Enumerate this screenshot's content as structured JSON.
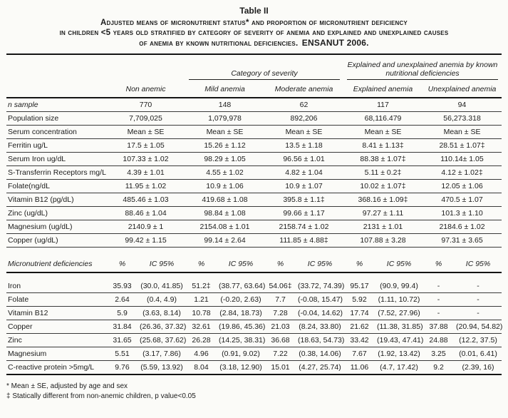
{
  "title": {
    "table_label": "Table II",
    "line1": "Adjusted means of micronutrient status* and proportion of micronutrient deficiency",
    "line2": "in children <5 years old stratified by category of severity of anemia and explained and unexplained causes",
    "line3": "of anemia by known nutritional deficiencies.",
    "line3_bold": "ENSANUT 2006."
  },
  "header": {
    "severity_group": "Category of severity",
    "explained_group": "Explained and unexplained anemia by known nutritional deficiencies",
    "columns": [
      "Non anemic",
      "Mild anemia",
      "Moderate anemia",
      "Explained anemia",
      "Unexplained anemia"
    ]
  },
  "means_section": {
    "rows": [
      {
        "label": "n sample",
        "values": [
          "770",
          "148",
          "62",
          "117",
          "94"
        ]
      },
      {
        "label": "Population size",
        "values": [
          "7,709,025",
          "1,079,978",
          "892,206",
          "68,116.479",
          "56,273.318"
        ]
      },
      {
        "label": "Serum concentration",
        "values": [
          "Mean ± SE",
          "Mean ± SE",
          "Mean ± SE",
          "Mean ± SE",
          "Mean ± SE"
        ]
      },
      {
        "label": "Ferritin  ug/L",
        "values": [
          "17.5 ± 1.05",
          "15.26 ± 1.12",
          "13.5 ± 1.18",
          "8.41 ± 1.13‡",
          "28.51 ± 1.07‡"
        ]
      },
      {
        "label": "Serum Iron ug/dL",
        "values": [
          "107.33 ± 1.02",
          "98.29 ± 1.05",
          "96.56 ± 1.01",
          "88.38 ± 1.07‡",
          "110.14± 1.05"
        ]
      },
      {
        "label": "S-Transferrin Receptors mg/L",
        "values": [
          "4.39 ± 1.01",
          "4.55 ± 1.02",
          "4.82 ± 1.04",
          "5.11 ± 0.2‡",
          "4.12 ± 1.02‡"
        ]
      },
      {
        "label": "Folate(ng/dL",
        "values": [
          "11.95 ± 1.02",
          "10.9 ± 1.06",
          "10.9 ± 1.07",
          "10.02 ± 1.07‡",
          "12.05 ± 1.06"
        ]
      },
      {
        "label": "Vitamin B12 (pg/dL)",
        "values": [
          "485.46 ± 1.03",
          "419.68 ± 1.08",
          "395.8 ± 1.1‡",
          "368.16 ± 1.09‡",
          "470.5 ± 1.07"
        ]
      },
      {
        "label": "Zinc (ug/dL)",
        "values": [
          "88.46 ± 1.04",
          "98.84 ± 1.08",
          "99.66 ± 1.17",
          "97.27 ± 1.11",
          "101.3 ± 1.10"
        ]
      },
      {
        "label": "Magnesium (ug/dL)",
        "values": [
          "2140.9 ± 1",
          "2154.08 ± 1.01",
          "2158.74 ± 1.02",
          "2131 ± 1.01",
          "2184.6 ± 1.02"
        ]
      },
      {
        "label": "Copper (ug/dL)",
        "values": [
          "99.42 ± 1.15",
          "99.14 ± 2.64",
          "111.85 ± 4.88‡",
          "107.88 ± 3.28",
          "97.31 ± 3.65"
        ]
      }
    ]
  },
  "deficiency_section": {
    "label": "Micronutrient deficiencies",
    "pct_header": "%",
    "ic_header": "IC 95%",
    "rows": [
      {
        "label": "Iron",
        "values": [
          "35.93",
          "(30.0, 41.85)",
          "51.2‡",
          "(38.77, 63.64)",
          "54.06‡",
          "(33.72, 74.39)",
          "95.17",
          "(90.9, 99.4)",
          "-",
          "-"
        ]
      },
      {
        "label": "Folate",
        "values": [
          "2.64",
          "(0.4, 4.9)",
          "1.21",
          "(-0.20, 2.63)",
          "7.7",
          "(-0.08, 15.47)",
          "5.92",
          "(1.11, 10.72)",
          "-",
          "-"
        ]
      },
      {
        "label": "Vitamin B12",
        "values": [
          "5.9",
          "(3.63, 8.14)",
          "10.78",
          "(2.84, 18.73)",
          "7.28",
          "(-0.04, 14.62)",
          "17.74",
          "(7.52, 27.96)",
          "-",
          "-"
        ]
      },
      {
        "label": "Copper",
        "values": [
          "31.84",
          "(26.36, 37.32)",
          "32.61",
          "(19.86, 45.36)",
          "21.03",
          "(8.24, 33.80)",
          "21.62",
          "(11.38, 31.85)",
          "37.88",
          "(20.94, 54.82)"
        ]
      },
      {
        "label": "Zinc",
        "values": [
          "31.65",
          "(25.68, 37.62)",
          "26.28",
          "(14.25, 38.31)",
          "36.68",
          "(18.63, 54.73)",
          "33.42",
          "(19.43, 47.41)",
          "24.88",
          "(12.2, 37.5)"
        ]
      },
      {
        "label": "Magnesium",
        "values": [
          "5.51",
          "(3.17, 7.86)",
          "4.96",
          "(0.91, 9.02)",
          "7.22",
          "(0.38, 14.06)",
          "7.67",
          "(1.92, 13.42)",
          "3.25",
          "(0.01, 6.41)"
        ]
      },
      {
        "label": "C-reactive protein >5mg/L",
        "values": [
          "9.76",
          "(5.59, 13.92)",
          "8.04",
          "(3.18, 12.90)",
          "15.01",
          "(4.27, 25.74)",
          "11.06",
          "(4.7, 17.42)",
          "9.2",
          "(2.39, 16)"
        ]
      }
    ]
  },
  "footnotes": {
    "note1": "* Mean ± SE, adjusted by age and sex",
    "note2": "‡ Statically different from non-anemic children, p value<0.05"
  }
}
